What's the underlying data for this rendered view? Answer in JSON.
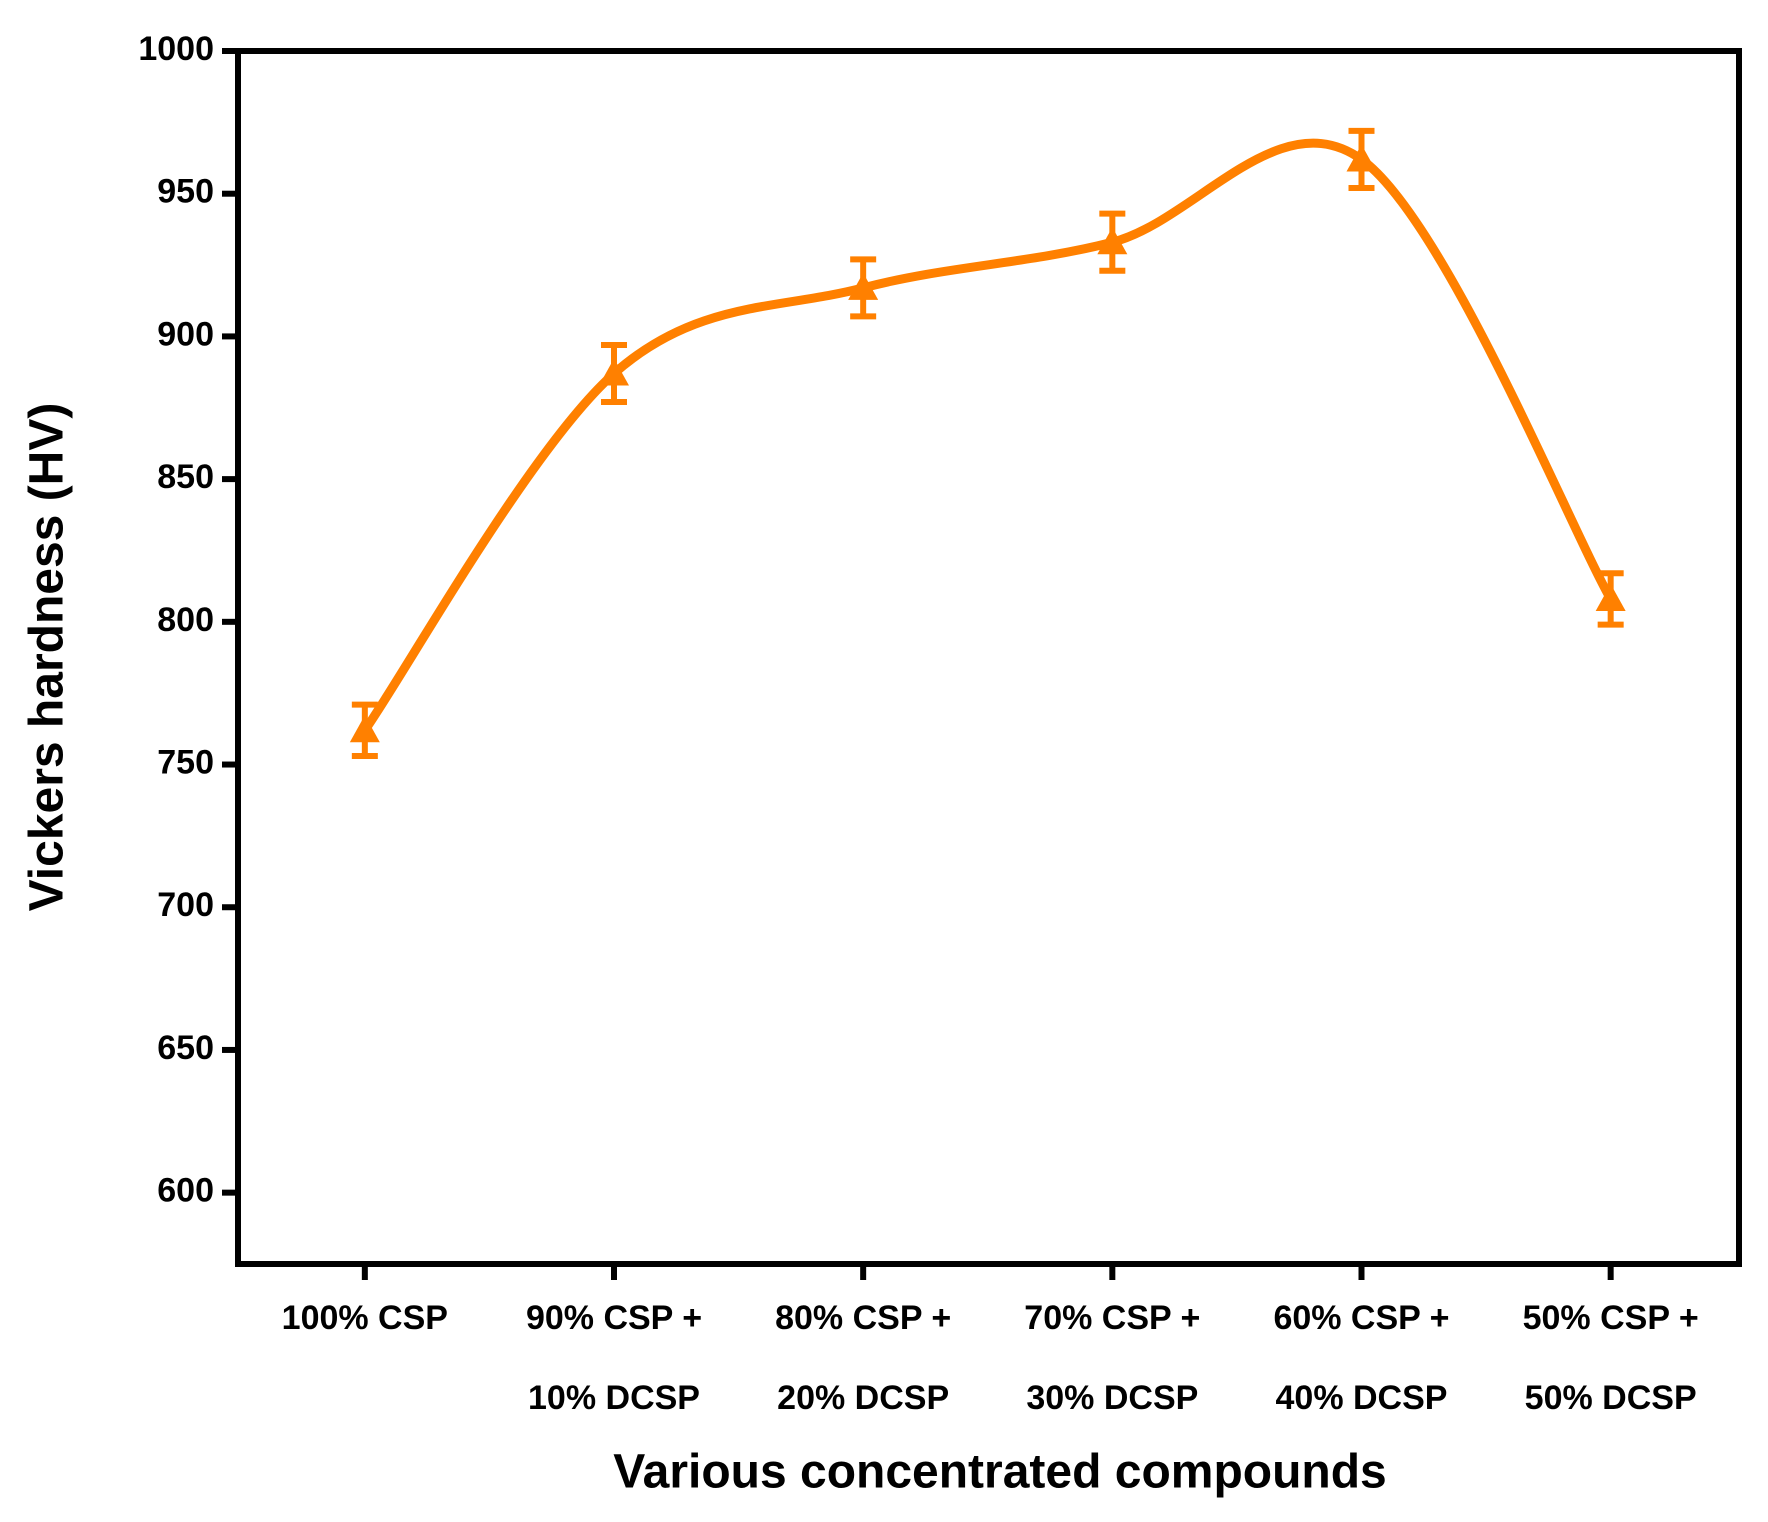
{
  "chart_data": {
    "type": "line",
    "x_label": "Various concentrated compounds",
    "y_label": "Vickers hardness (HV)",
    "categories": [
      [
        "100% CSP"
      ],
      [
        "90% CSP +",
        "10% DCSP"
      ],
      [
        "80% CSP +",
        "20% DCSP"
      ],
      [
        "70% CSP +",
        "30% DCSP"
      ],
      [
        "60% CSP +",
        "40% DCSP"
      ],
      [
        "50% CSP +",
        "50% DCSP"
      ]
    ],
    "values": [
      762,
      887,
      917,
      933,
      962,
      808
    ],
    "errors": [
      9,
      10,
      10,
      10,
      10,
      9
    ],
    "color": "#ff8000",
    "ylim": [
      575,
      1000
    ],
    "yticks": [
      600,
      650,
      700,
      750,
      800,
      850,
      900,
      950,
      1000
    ]
  }
}
